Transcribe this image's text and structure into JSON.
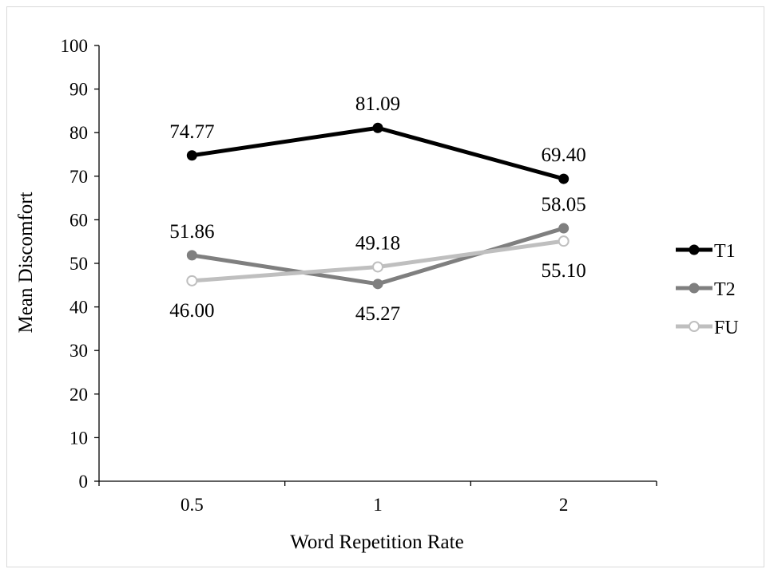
{
  "chart_data": {
    "type": "line",
    "title": "",
    "xlabel": "Word Repetition Rate",
    "ylabel": "Mean Discomfort",
    "categories": [
      "0.5",
      "1",
      "2"
    ],
    "ylim": [
      0,
      100
    ],
    "yticks": [
      0,
      10,
      20,
      30,
      40,
      50,
      60,
      70,
      80,
      90,
      100
    ],
    "grid": false,
    "legend_position": "right",
    "series": [
      {
        "name": "T1",
        "values": [
          74.77,
          81.09,
          69.4
        ],
        "labels": [
          "74.77",
          "81.09",
          "69.40"
        ],
        "label_placement": [
          "above",
          "above",
          "above"
        ],
        "color": "#000000",
        "marker": "filled-circle"
      },
      {
        "name": "T2",
        "values": [
          51.86,
          45.27,
          58.05
        ],
        "labels": [
          "51.86",
          "45.27",
          "58.05"
        ],
        "label_placement": [
          "above",
          "below",
          "above"
        ],
        "color": "#7f7f7f",
        "marker": "filled-circle"
      },
      {
        "name": "FU",
        "values": [
          46.0,
          49.18,
          55.1
        ],
        "labels": [
          "46.00",
          "49.18",
          "55.10"
        ],
        "label_placement": [
          "below",
          "above",
          "below"
        ],
        "color": "#bfbfbf",
        "marker": "open-circle"
      }
    ]
  }
}
